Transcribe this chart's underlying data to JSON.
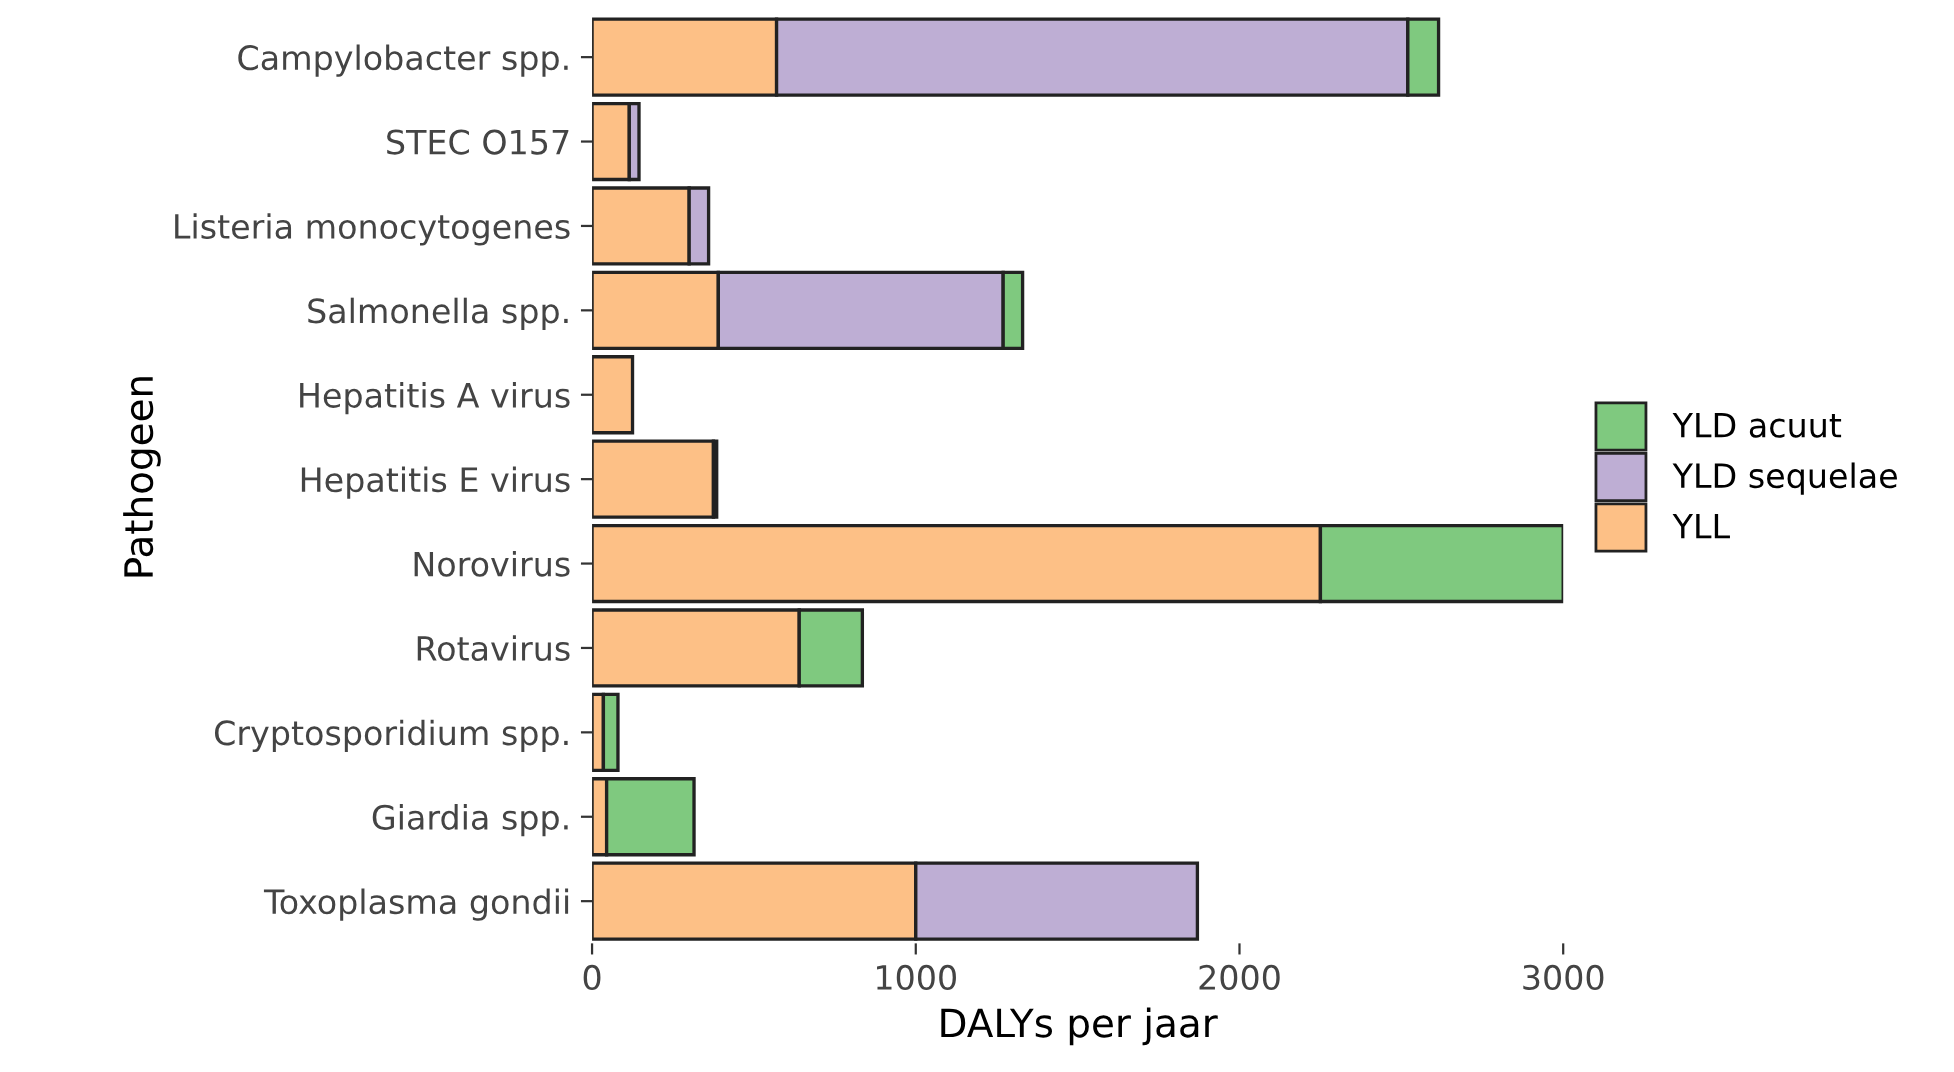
{
  "chart_data": {
    "type": "bar",
    "orientation": "horizontal",
    "stacked": true,
    "xlabel": "DALYs per jaar",
    "ylabel": "Pathogeen",
    "categories": [
      "Campylobacter spp.",
      "STEC O157",
      "Listeria monocytogenes",
      "Salmonella spp.",
      "Hepatitis A virus",
      "Hepatitis E virus",
      "Norovirus",
      "Rotavirus",
      "Cryptosporidium spp.",
      "Giardia spp.",
      "Toxoplasma gondii"
    ],
    "series": [
      {
        "name": "YLL",
        "color": "#fdc086",
        "values": [
          570,
          115,
          300,
          390,
          125,
          375,
          2250,
          640,
          35,
          45,
          1000
        ]
      },
      {
        "name": "YLD sequelae",
        "color": "#beaed4",
        "values": [
          1950,
          30,
          60,
          880,
          null,
          null,
          null,
          null,
          null,
          null,
          870
        ]
      },
      {
        "name": "YLD acuut",
        "color": "#7fc97f",
        "values": [
          95,
          null,
          null,
          60,
          null,
          10,
          750,
          195,
          45,
          270,
          null
        ]
      }
    ],
    "xlim": [
      0,
      3000
    ],
    "xticks": [
      0,
      1000,
      2000,
      3000
    ],
    "grid": false,
    "legend": "right"
  }
}
